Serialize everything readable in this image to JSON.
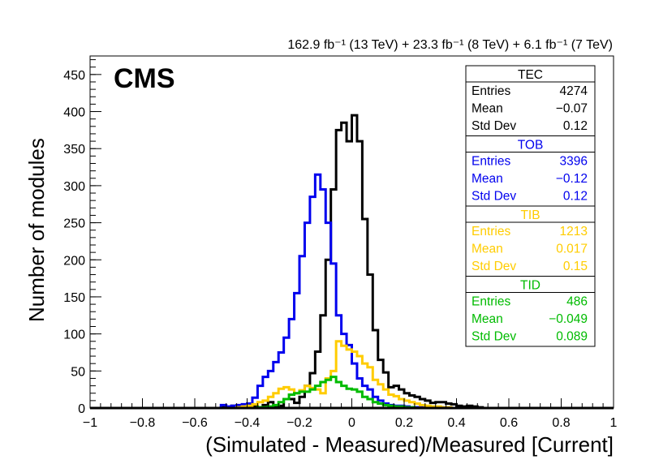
{
  "chart_data": {
    "type": "histogram",
    "label": "CMS",
    "title": "162.9 fb⁻¹ (13 TeV) + 23.3 fb⁻¹ (8 TeV) + 6.1 fb⁻¹ (7 TeV)",
    "xlabel": "(Simulated - Measured)/Measured [Current]",
    "ylabel": "Number of modules",
    "xlim": [
      -1,
      1
    ],
    "ylim": [
      0,
      475
    ],
    "xticks": [
      "−1",
      "−0.8",
      "−0.6",
      "−0.4",
      "−0.2",
      "0",
      "0.2",
      "0.4",
      "0.6",
      "0.8",
      "1"
    ],
    "yticks": [
      "0",
      "50",
      "100",
      "150",
      "200",
      "250",
      "300",
      "350",
      "400",
      "450"
    ],
    "bin_width": 0.02,
    "series": [
      {
        "name": "TEC",
        "color": "#000000",
        "x_start": -0.5,
        "counts": [
          1,
          1,
          3,
          3,
          1,
          5,
          2,
          1,
          4,
          8,
          1,
          3,
          12,
          12,
          7,
          15,
          30,
          47,
          76,
          125,
          200,
          295,
          375,
          385,
          360,
          395,
          360,
          255,
          180,
          105,
          65,
          48,
          28,
          30,
          25,
          20,
          17,
          15,
          12,
          10,
          7,
          8,
          8,
          6,
          5,
          3,
          2,
          3,
          2,
          1
        ],
        "stats": {
          "entries_label": "Entries",
          "entries": "4274",
          "mean_label": "Mean",
          "mean": "−0.07",
          "std_label": "Std Dev",
          "std": "0.12"
        }
      },
      {
        "name": "TOB",
        "color": "#0000ee",
        "x_start": -0.5,
        "counts": [
          4,
          2,
          3,
          4,
          5,
          6,
          14,
          30,
          42,
          50,
          62,
          75,
          95,
          120,
          155,
          205,
          250,
          285,
          315,
          295,
          250,
          195,
          125,
          100,
          85,
          60,
          40,
          30,
          25,
          15,
          10,
          6,
          4,
          3,
          3,
          2,
          1,
          1,
          1,
          0,
          1,
          0,
          1,
          1,
          0,
          0,
          0,
          0,
          0,
          0
        ],
        "stats": {
          "entries_label": "Entries",
          "entries": "3396",
          "mean_label": "Mean",
          "mean": "−0.12",
          "std_label": "Std Dev",
          "std": "0.12"
        }
      },
      {
        "name": "TIB",
        "color": "#ffcc00",
        "x_start": -0.5,
        "counts": [
          0,
          0,
          0,
          1,
          2,
          3,
          5,
          8,
          10,
          15,
          20,
          26,
          28,
          25,
          20,
          24,
          30,
          27,
          25,
          20,
          40,
          50,
          90,
          84,
          79,
          76,
          70,
          60,
          55,
          38,
          32,
          25,
          18,
          16,
          12,
          10,
          8,
          6,
          4,
          3,
          2,
          2,
          1,
          1,
          0,
          0,
          0,
          0,
          0,
          0
        ],
        "stats": {
          "entries_label": "Entries",
          "entries": "1213",
          "mean_label": "Mean",
          "mean": "0.017",
          "std_label": "Std Dev",
          "std": "0.15"
        }
      },
      {
        "name": "TID",
        "color": "#00bb00",
        "x_start": -0.5,
        "counts": [
          0,
          0,
          0,
          0,
          0,
          0,
          0,
          1,
          1,
          2,
          4,
          8,
          12,
          18,
          20,
          22,
          22,
          25,
          30,
          35,
          38,
          42,
          35,
          30,
          26,
          25,
          22,
          15,
          12,
          8,
          6,
          4,
          3,
          2,
          2,
          1,
          1,
          0,
          0,
          0,
          0,
          0,
          0,
          0,
          0,
          0,
          0,
          0,
          0,
          0
        ],
        "stats": {
          "entries_label": "Entries",
          "entries": "486",
          "mean_label": "Mean",
          "mean": "−0.049",
          "std_label": "Std Dev",
          "std": "0.089"
        }
      }
    ]
  }
}
